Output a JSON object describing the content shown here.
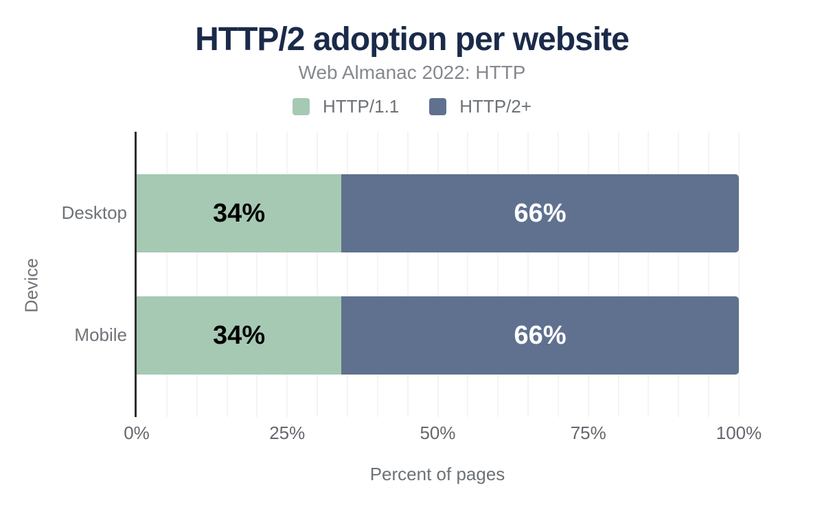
{
  "chart_data": {
    "type": "bar",
    "orientation": "horizontal",
    "stacked": true,
    "title": "HTTP/2 adoption per website",
    "subtitle": "Web Almanac 2022: HTTP",
    "categories": [
      "Desktop",
      "Mobile"
    ],
    "series": [
      {
        "name": "HTTP/1.1",
        "color": "#a6c9b4",
        "label_color": "#000000",
        "values": [
          34,
          34
        ]
      },
      {
        "name": "HTTP/2+",
        "color": "#60718f",
        "label_color": "#ffffff",
        "values": [
          66,
          66
        ]
      }
    ],
    "value_label_suffix": "%",
    "xlabel": "Percent of pages",
    "ylabel": "Device",
    "xlim": [
      0,
      100
    ],
    "x_ticks": [
      {
        "label": "0%",
        "value": 0
      },
      {
        "label": "25%",
        "value": 25
      },
      {
        "label": "50%",
        "value": 50
      },
      {
        "label": "75%",
        "value": 75
      },
      {
        "label": "100%",
        "value": 100
      }
    ],
    "minor_gridline_step": 5,
    "grid": "vertical minor gridlines",
    "legend_position": "top"
  },
  "colors": {
    "title": "#1a2a49",
    "subtitle": "#85888d",
    "axis_line": "#2e2e2e",
    "gridline": "#f4f4f4",
    "tick_text": "#64676d",
    "category_text": "#6e7277",
    "background": "#ffffff"
  }
}
